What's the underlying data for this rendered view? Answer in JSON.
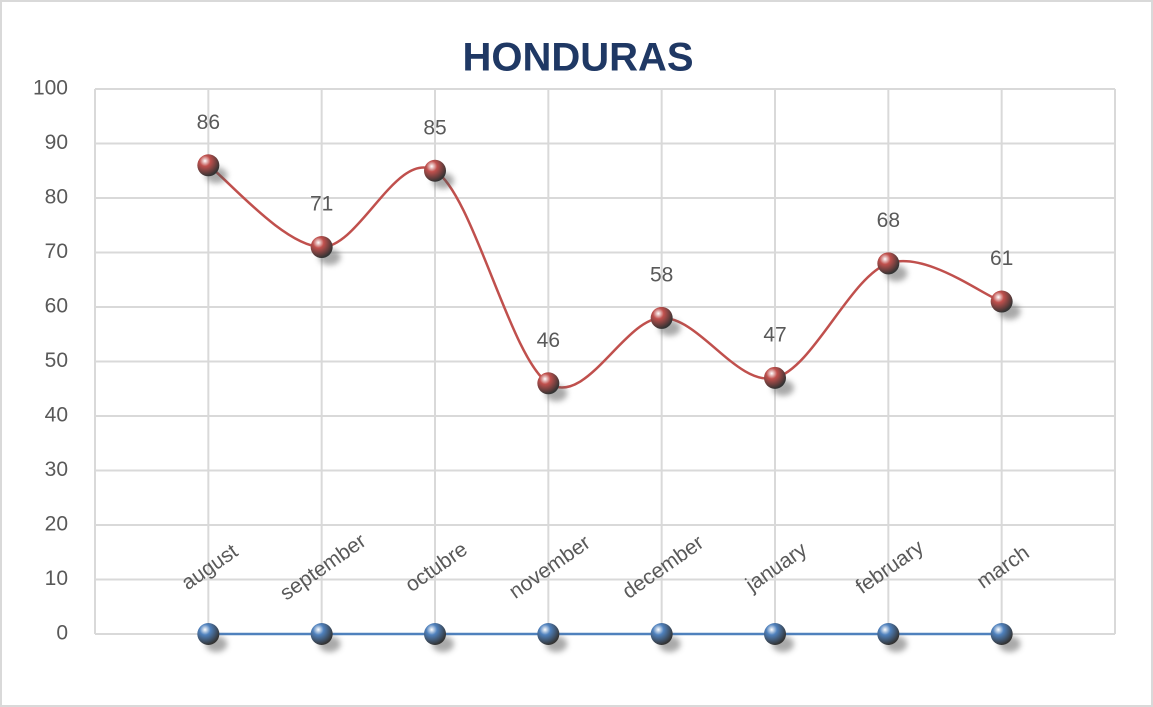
{
  "chart_data": {
    "type": "line",
    "title": "HONDURAS",
    "categories": [
      "august",
      "september",
      "octubre",
      "november",
      "december",
      "january",
      "february",
      "march"
    ],
    "series": [
      {
        "color": "#c0504d",
        "values": [
          86,
          71,
          85,
          46,
          58,
          47,
          68,
          61
        ],
        "data_labels": true,
        "smooth": true
      },
      {
        "color": "#4f81bd",
        "values": [
          0,
          0,
          0,
          0,
          0,
          0,
          0,
          0
        ],
        "data_labels": false,
        "smooth": false
      }
    ],
    "ylim": [
      0,
      100
    ],
    "yticks": [
      0,
      10,
      20,
      30,
      40,
      50,
      60,
      70,
      80,
      90,
      100
    ],
    "grid": true
  }
}
